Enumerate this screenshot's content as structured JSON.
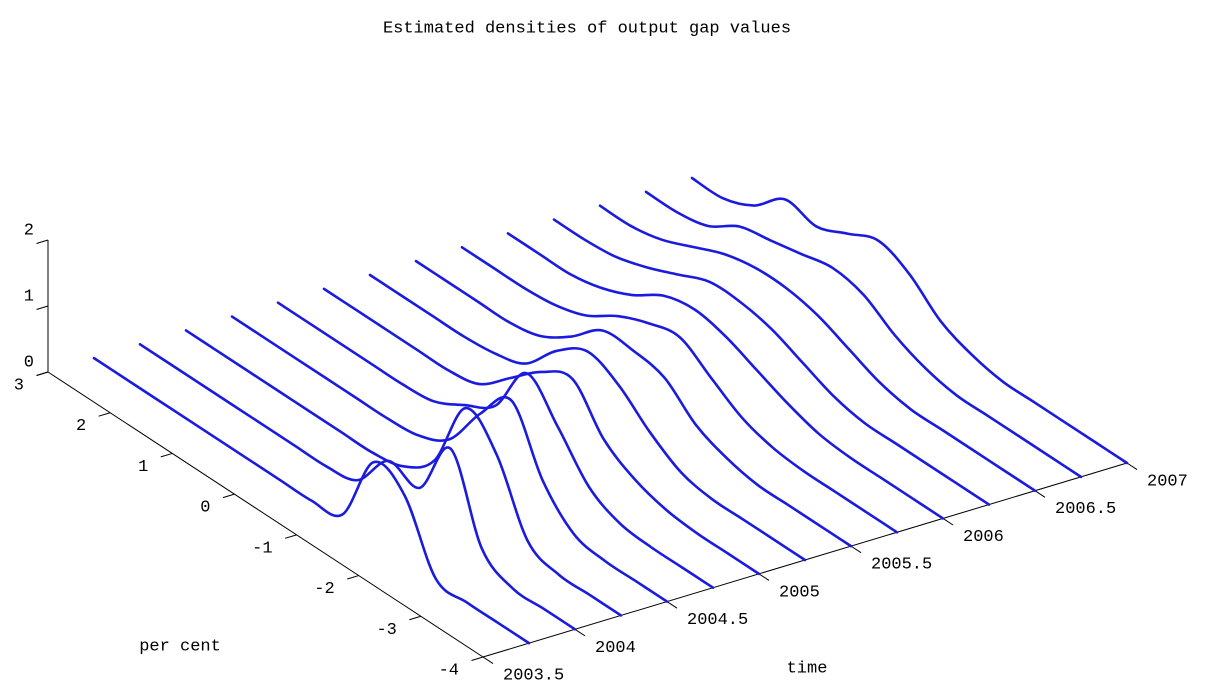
{
  "chart_data": {
    "type": "waterfall3d",
    "title": "Estimated densities of output gap values",
    "xlabel": "time",
    "ylabel": "per cent",
    "xlim": [
      2003.5,
      2007
    ],
    "xticks": [
      2003.5,
      2004,
      2004.5,
      2005,
      2005.5,
      2006,
      2006.5,
      2007
    ],
    "ylim": [
      -4,
      3
    ],
    "yticks": [
      -4,
      -3,
      -2,
      -1,
      0,
      1,
      2,
      3
    ],
    "zlim": [
      0,
      2
    ],
    "zticks": [
      0,
      1,
      2
    ],
    "color": "#1b1be0",
    "y": [
      -4,
      -3.5,
      -3,
      -2.5,
      -2,
      -1.5,
      -1,
      -0.5,
      0,
      0.5,
      1,
      1.5,
      2,
      2.5,
      3
    ],
    "series": [
      {
        "time": 2003.75,
        "values": [
          0,
          0,
          0,
          0.05,
          1.0,
          1.2,
          0.1,
          0,
          0,
          0,
          0,
          0,
          0,
          0,
          0
        ]
      },
      {
        "time": 2004,
        "values": [
          0,
          0,
          0,
          0.3,
          1.5,
          0.6,
          0.7,
          0.1,
          0,
          0,
          0,
          0,
          0,
          0,
          0
        ]
      },
      {
        "time": 2004.25,
        "values": [
          0,
          0,
          0,
          0.2,
          1.2,
          1.6,
          0.5,
          0.1,
          0,
          0,
          0,
          0,
          0,
          0,
          0
        ]
      },
      {
        "time": 2004.5,
        "values": [
          0,
          0,
          0,
          0.1,
          0.6,
          1.5,
          1.0,
          0.3,
          0.05,
          0,
          0,
          0,
          0,
          0,
          0
        ]
      },
      {
        "time": 2004.75,
        "values": [
          0,
          0,
          0,
          0.05,
          0.3,
          0.9,
          1.4,
          0.6,
          0.3,
          0.05,
          0,
          0,
          0,
          0,
          0
        ]
      },
      {
        "time": 2005,
        "values": [
          0,
          0,
          0,
          0.05,
          0.2,
          0.5,
          1.1,
          0.9,
          0.5,
          0.1,
          0,
          0,
          0,
          0,
          0
        ]
      },
      {
        "time": 2005.25,
        "values": [
          0,
          0,
          0,
          0,
          0.1,
          0.4,
          0.8,
          1.0,
          0.7,
          0.2,
          0.05,
          0,
          0,
          0,
          0
        ]
      },
      {
        "time": 2005.5,
        "values": [
          0,
          0,
          0,
          0,
          0.1,
          0.3,
          0.7,
          0.8,
          0.8,
          0.4,
          0.1,
          0,
          0,
          0,
          0
        ]
      },
      {
        "time": 2005.75,
        "values": [
          0,
          0,
          0,
          0,
          0.05,
          0.2,
          0.5,
          0.8,
          0.7,
          0.5,
          0.2,
          0.05,
          0,
          0,
          0
        ]
      },
      {
        "time": 2006,
        "values": [
          0,
          0,
          0,
          0,
          0.05,
          0.2,
          0.4,
          0.6,
          0.7,
          0.6,
          0.3,
          0.1,
          0,
          0,
          0
        ]
      },
      {
        "time": 2006.25,
        "values": [
          0,
          0,
          0,
          0,
          0,
          0.1,
          0.3,
          0.5,
          0.6,
          0.6,
          0.4,
          0.2,
          0.05,
          0,
          0
        ]
      },
      {
        "time": 2006.5,
        "values": [
          0,
          0,
          0,
          0,
          0,
          0.1,
          0.3,
          0.5,
          0.6,
          0.6,
          0.5,
          0.3,
          0.1,
          0,
          0
        ]
      },
      {
        "time": 2006.75,
        "values": [
          0,
          0,
          0,
          0,
          0,
          0.1,
          0.3,
          0.6,
          0.7,
          0.6,
          0.5,
          0.4,
          0.1,
          0,
          0
        ]
      },
      {
        "time": 2007,
        "values": [
          0,
          0,
          0,
          0,
          0,
          0.1,
          0.3,
          0.7,
          0.9,
          0.7,
          0.5,
          0.6,
          0.2,
          0,
          0
        ]
      }
    ]
  }
}
